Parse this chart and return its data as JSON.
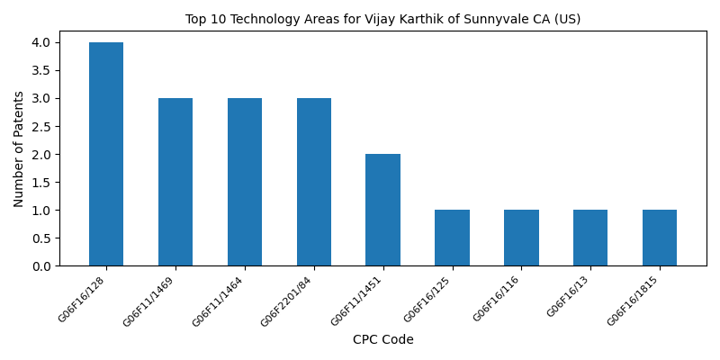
{
  "title": "Top 10 Technology Areas for Vijay Karthik of Sunnyvale CA (US)",
  "xlabel": "CPC Code",
  "ylabel": "Number of Patents",
  "categories": [
    "G06F16/128",
    "G06F11/1469",
    "G06F11/1464",
    "G06F2201/84",
    "G06F11/1451",
    "G06F16/125",
    "G06F16/116",
    "G06F16/13",
    "G06F16/1815"
  ],
  "values": [
    4,
    3,
    3,
    3,
    2,
    1,
    1,
    1,
    1
  ],
  "bar_color": "#2077b4",
  "bar_width": 0.5,
  "figsize": [
    8,
    4
  ],
  "dpi": 100,
  "ylim": [
    0,
    4.2
  ],
  "yticks": [
    0.0,
    0.5,
    1.0,
    1.5,
    2.0,
    2.5,
    3.0,
    3.5,
    4.0
  ],
  "title_fontsize": 10,
  "label_fontsize": 10,
  "tick_fontsize": 8
}
